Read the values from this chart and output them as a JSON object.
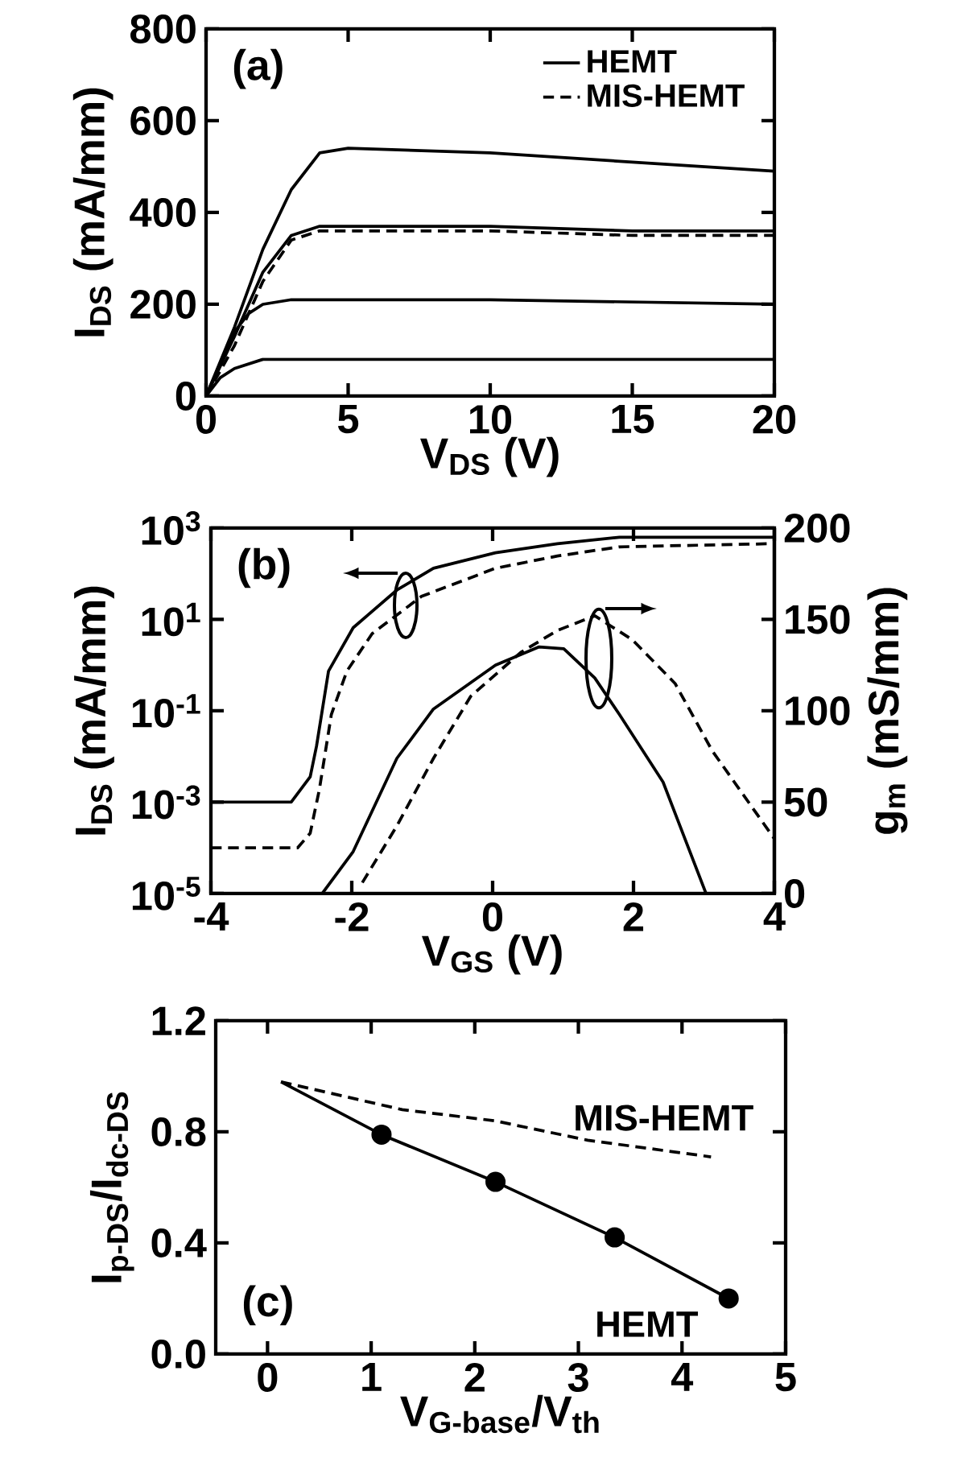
{
  "chart_data": [
    {
      "type": "line",
      "annotations": [
        "(a)"
      ],
      "xlabel": "V$_{DS}$ (V)",
      "ylabel": "I$_{DS}$ (mA/mm)",
      "xlim": [
        0,
        20
      ],
      "ylim": [
        0,
        800
      ],
      "xticks": [
        0,
        5,
        10,
        15,
        20
      ],
      "yticks": [
        0,
        200,
        400,
        600,
        800
      ],
      "legend": "top right",
      "series": [
        {
          "name": "HEMT",
          "color": "#000000",
          "line_style": "solid",
          "x": [
            0,
            1,
            2,
            3,
            4,
            5,
            10,
            15,
            20
          ],
          "values": [
            0,
            150,
            320,
            450,
            530,
            540,
            530,
            510,
            490
          ]
        },
        {
          "name": "MIS-HEMT",
          "color": "#000000",
          "line_style": "dashed",
          "x": [
            0,
            1,
            2,
            3,
            4,
            5,
            10,
            15,
            20
          ],
          "values": [
            0,
            110,
            250,
            340,
            360,
            360,
            360,
            350,
            350
          ]
        },
        {
          "color": "#000000",
          "line_style": "solid",
          "x": [
            0,
            1,
            2,
            3,
            4,
            5,
            10,
            15,
            20
          ],
          "values": [
            0,
            130,
            270,
            350,
            370,
            370,
            370,
            360,
            360
          ]
        },
        {
          "color": "#000000",
          "line_style": "solid",
          "x": [
            0,
            0.5,
            1,
            1.5,
            2,
            3,
            5,
            10,
            20
          ],
          "values": [
            0,
            70,
            140,
            180,
            200,
            210,
            210,
            210,
            200
          ]
        },
        {
          "color": "#000000",
          "line_style": "solid",
          "x": [
            0,
            0.5,
            1,
            1.5,
            2,
            5,
            10,
            20
          ],
          "values": [
            0,
            40,
            60,
            70,
            80,
            80,
            80,
            80
          ]
        }
      ]
    },
    {
      "type": "line",
      "annotations": [
        "(b)"
      ],
      "xlabel": "V$_{GS}$ (V)",
      "ylabel": "I$_{DS}$ (mA/mm)",
      "y2label": "g$_{m}$ (mS/mm)",
      "log": "y",
      "xlim": [
        -4,
        4
      ],
      "ylim": [
        1e-05,
        1000
      ],
      "y2lim": [
        0,
        200
      ],
      "xticks": [
        -4,
        -2,
        0,
        2,
        4
      ],
      "yticks": [
        {
          "value": 1e-05,
          "label": "10$^{-5}$"
        },
        {
          "value": 0.001,
          "label": "10$^{-3}$"
        },
        {
          "value": 0.1,
          "label": "10$^{-1}$"
        },
        {
          "value": 10,
          "label": "10$^{1}$"
        },
        {
          "value": 1000,
          "label": "10$^{3}$"
        }
      ],
      "y2ticks": [
        0,
        50,
        100,
        150,
        200
      ],
      "series": [
        {
          "color": "#000000",
          "line_style": "solid",
          "x": [
            -4,
            -2.86,
            -2.59,
            -2.5,
            -2.33,
            -1.98,
            -1.36,
            -0.84,
            0.04,
            0.92,
            1.8,
            4
          ],
          "values": [
            0.001,
            0.001,
            0.0036,
            0.017,
            0.74,
            6.6,
            44,
            132,
            288,
            457,
            630,
            630
          ]
        },
        {
          "color": "#000000",
          "line_style": "dashed",
          "x": [
            -4,
            -2.77,
            -2.59,
            -2.46,
            -2.29,
            -2.07,
            -1.71,
            -1.01,
            0.04,
            0.92,
            1.8,
            4
          ],
          "values": [
            0.0001,
            0.0001,
            0.00021,
            0.0019,
            0.083,
            0.74,
            4.9,
            32,
            132,
            245,
            389,
            457
          ]
        },
        {
          "color": "#000000",
          "line_style": "solid",
          "axis": "y2",
          "x": [
            -2.42,
            -1.98,
            -1.36,
            -0.84,
            0.04,
            0.66,
            1.01,
            1.45,
            1.8,
            2.42,
            3.03
          ],
          "values": [
            0,
            23,
            74,
            101,
            125,
            135,
            134,
            118,
            98,
            61,
            0
          ]
        },
        {
          "color": "#000000",
          "line_style": "dashed",
          "axis": "y2",
          "x": [
            -1.85,
            -1.36,
            -0.84,
            -0.31,
            0.4,
            0.92,
            1.45,
            1.98,
            2.59,
            3.12,
            4
          ],
          "values": [
            6,
            37,
            74,
            108,
            132,
            144,
            152,
            139,
            115,
            78,
            30
          ]
        }
      ]
    },
    {
      "type": "line",
      "annotations": [
        "(c)"
      ],
      "xlabel": "V$_{G-base}$/V$_{th}$",
      "ylabel": "I$_{p-DS}$/I$_{dc-DS}$",
      "xlim": [
        -0.5,
        5
      ],
      "ylim": [
        0,
        1.2
      ],
      "xticks": [
        0,
        1,
        2,
        3,
        4,
        5
      ],
      "yticks": [
        {
          "value": 0,
          "label": "0.0"
        },
        {
          "value": 0.4,
          "label": "0.4"
        },
        {
          "value": 0.8,
          "label": "0.8"
        },
        {
          "value": 1.2,
          "label": "1.2"
        }
      ],
      "series": [
        {
          "name": "HEMT",
          "color": "#000000",
          "line_style": "solid",
          "x": [
            0.13,
            1.1,
            2.2,
            3.35,
            4.45
          ],
          "values": [
            0.98,
            0.79,
            0.62,
            0.42,
            0.2
          ]
        },
        {
          "name": "MIS-HEMT",
          "color": "#000000",
          "line_style": "dashed",
          "x": [
            0.13,
            1.3,
            2.19,
            3.09,
            4.28
          ],
          "values": [
            0.98,
            0.88,
            0.84,
            0.77,
            0.71
          ]
        },
        {
          "type": "scatter",
          "color": "#000000",
          "marker": "circle",
          "x": [
            1.1,
            2.2,
            3.35,
            4.45
          ],
          "values": [
            0.79,
            0.62,
            0.42,
            0.2
          ]
        }
      ]
    }
  ]
}
